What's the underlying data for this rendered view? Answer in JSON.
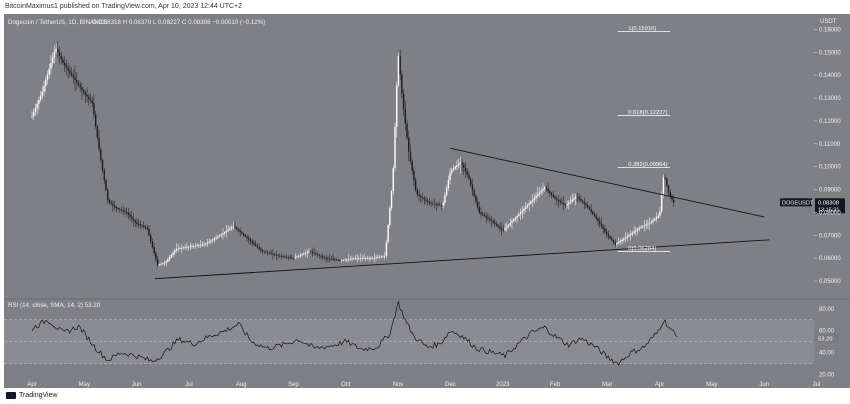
{
  "header": {
    "publisher_text": "BitcoinMaximus1 published on TradingView.com, Apr 10, 2023 12:44 UTC+2"
  },
  "footer": {
    "brand": "TradingView"
  },
  "colors": {
    "background": "#7f8085",
    "candle_up": "#ffffff",
    "candle_down": "#1a1a1a",
    "rsi_band": "#8b8c92",
    "price_tag": "#131722"
  },
  "chart_data": [
    {
      "type": "candlestick",
      "symbol_line": {
        "name": "Dogecoin / TetherUS, 1D, BINANCE",
        "ohlc": [
          "O 0.08318",
          "H 0.08379",
          "L 0.08227",
          "C 0.08308",
          "−0.00010 (−0.12%)"
        ]
      },
      "y_unit": "USDT",
      "ylim": [
        0.043,
        0.165
      ],
      "y_ticks": [
        0.05,
        0.06,
        0.07,
        0.08,
        0.09,
        0.1,
        0.11,
        0.12,
        0.13,
        0.14,
        0.15,
        0.16
      ],
      "y_tick_labels": [
        "0.05000",
        "0.06000",
        "0.07000",
        "0.08000",
        "0.09000",
        "0.10000",
        "0.11000",
        "0.12000",
        "0.13000",
        "0.14000",
        "0.15000",
        "0.16000"
      ],
      "x_months": [
        "Apr",
        "May",
        "Jun",
        "Jul",
        "Aug",
        "Sep",
        "Oct",
        "Nov",
        "Dec",
        "2023",
        "Feb",
        "Mar",
        "Apr",
        "May",
        "Jun",
        "Jul"
      ],
      "close_series": [
        {
          "t": 0.0,
          "v": 0.122
        },
        {
          "t": 0.2,
          "v": 0.133
        },
        {
          "t": 0.45,
          "v": 0.152
        },
        {
          "t": 0.6,
          "v": 0.145
        },
        {
          "t": 0.85,
          "v": 0.137
        },
        {
          "t": 1.0,
          "v": 0.132
        },
        {
          "t": 1.15,
          "v": 0.128
        },
        {
          "t": 1.3,
          "v": 0.105
        },
        {
          "t": 1.45,
          "v": 0.085
        },
        {
          "t": 1.6,
          "v": 0.082
        },
        {
          "t": 1.8,
          "v": 0.08
        },
        {
          "t": 2.0,
          "v": 0.075
        },
        {
          "t": 2.2,
          "v": 0.073
        },
        {
          "t": 2.4,
          "v": 0.057
        },
        {
          "t": 2.55,
          "v": 0.058
        },
        {
          "t": 2.75,
          "v": 0.064
        },
        {
          "t": 3.0,
          "v": 0.065
        },
        {
          "t": 3.3,
          "v": 0.066
        },
        {
          "t": 3.6,
          "v": 0.07
        },
        {
          "t": 3.85,
          "v": 0.074
        },
        {
          "t": 4.1,
          "v": 0.069
        },
        {
          "t": 4.4,
          "v": 0.063
        },
        {
          "t": 4.7,
          "v": 0.061
        },
        {
          "t": 5.0,
          "v": 0.06
        },
        {
          "t": 5.3,
          "v": 0.063
        },
        {
          "t": 5.6,
          "v": 0.06
        },
        {
          "t": 5.9,
          "v": 0.059
        },
        {
          "t": 6.2,
          "v": 0.06
        },
        {
          "t": 6.5,
          "v": 0.06
        },
        {
          "t": 6.75,
          "v": 0.061
        },
        {
          "t": 6.9,
          "v": 0.095
        },
        {
          "t": 7.0,
          "v": 0.15
        },
        {
          "t": 7.08,
          "v": 0.13
        },
        {
          "t": 7.2,
          "v": 0.107
        },
        {
          "t": 7.35,
          "v": 0.088
        },
        {
          "t": 7.6,
          "v": 0.084
        },
        {
          "t": 7.85,
          "v": 0.083
        },
        {
          "t": 8.0,
          "v": 0.098
        },
        {
          "t": 8.2,
          "v": 0.102
        },
        {
          "t": 8.35,
          "v": 0.095
        },
        {
          "t": 8.55,
          "v": 0.08
        },
        {
          "t": 8.8,
          "v": 0.076
        },
        {
          "t": 9.0,
          "v": 0.072
        },
        {
          "t": 9.3,
          "v": 0.079
        },
        {
          "t": 9.55,
          "v": 0.085
        },
        {
          "t": 9.8,
          "v": 0.091
        },
        {
          "t": 10.0,
          "v": 0.086
        },
        {
          "t": 10.2,
          "v": 0.083
        },
        {
          "t": 10.4,
          "v": 0.087
        },
        {
          "t": 10.6,
          "v": 0.083
        },
        {
          "t": 10.8,
          "v": 0.077
        },
        {
          "t": 11.0,
          "v": 0.07
        },
        {
          "t": 11.15,
          "v": 0.066
        },
        {
          "t": 11.35,
          "v": 0.069
        },
        {
          "t": 11.6,
          "v": 0.073
        },
        {
          "t": 11.85,
          "v": 0.076
        },
        {
          "t": 12.0,
          "v": 0.079
        },
        {
          "t": 12.08,
          "v": 0.097
        },
        {
          "t": 12.18,
          "v": 0.088
        },
        {
          "t": 12.3,
          "v": 0.083
        }
      ],
      "trendlines": [
        {
          "name": "ascending support",
          "from": {
            "t": 2.35,
            "v": 0.051
          },
          "to": {
            "t": 14.1,
            "v": 0.068
          }
        },
        {
          "name": "descending resistance",
          "from": {
            "t": 8.0,
            "v": 0.108
          },
          "to": {
            "t": 14.0,
            "v": 0.078
          }
        }
      ],
      "fib_levels": [
        {
          "label": "1(0.15916)",
          "value": 0.15916
        },
        {
          "label": "0.618(0.12237)",
          "value": 0.12237
        },
        {
          "label": "0.382(0.09964)",
          "value": 0.09964
        },
        {
          "label": "0(0.06284)",
          "value": 0.06284
        }
      ],
      "price_tag": {
        "symbol": "DOGEUSDT",
        "price": "0.08308",
        "countdown": "13:15:31",
        "value": 0.08308
      }
    },
    {
      "type": "line",
      "indicator_label": "RSI (14, close, SMA, 14, 2)",
      "indicator_value": "53.20",
      "indicator_extra": "0  0  0",
      "ylim": [
        15,
        88
      ],
      "y_ticks": [
        20,
        40,
        60,
        80
      ],
      "y_tick_labels": [
        "20.00",
        "40.00",
        "60.00",
        "80.00"
      ],
      "band": [
        30,
        70
      ],
      "midline": 50,
      "series": [
        {
          "t": 0.0,
          "v": 62
        },
        {
          "t": 0.3,
          "v": 70
        },
        {
          "t": 0.6,
          "v": 58
        },
        {
          "t": 0.9,
          "v": 64
        },
        {
          "t": 1.2,
          "v": 45
        },
        {
          "t": 1.45,
          "v": 33
        },
        {
          "t": 1.7,
          "v": 40
        },
        {
          "t": 2.0,
          "v": 37
        },
        {
          "t": 2.3,
          "v": 32
        },
        {
          "t": 2.5,
          "v": 38
        },
        {
          "t": 2.8,
          "v": 52
        },
        {
          "t": 3.1,
          "v": 48
        },
        {
          "t": 3.4,
          "v": 55
        },
        {
          "t": 3.7,
          "v": 60
        },
        {
          "t": 3.95,
          "v": 66
        },
        {
          "t": 4.2,
          "v": 50
        },
        {
          "t": 4.5,
          "v": 44
        },
        {
          "t": 4.8,
          "v": 47
        },
        {
          "t": 5.1,
          "v": 52
        },
        {
          "t": 5.4,
          "v": 44
        },
        {
          "t": 5.7,
          "v": 46
        },
        {
          "t": 6.0,
          "v": 50
        },
        {
          "t": 6.3,
          "v": 43
        },
        {
          "t": 6.6,
          "v": 45
        },
        {
          "t": 6.85,
          "v": 58
        },
        {
          "t": 7.0,
          "v": 86
        },
        {
          "t": 7.15,
          "v": 68
        },
        {
          "t": 7.3,
          "v": 55
        },
        {
          "t": 7.55,
          "v": 45
        },
        {
          "t": 7.8,
          "v": 48
        },
        {
          "t": 8.0,
          "v": 60
        },
        {
          "t": 8.2,
          "v": 56
        },
        {
          "t": 8.5,
          "v": 44
        },
        {
          "t": 8.8,
          "v": 40
        },
        {
          "t": 9.05,
          "v": 37
        },
        {
          "t": 9.3,
          "v": 48
        },
        {
          "t": 9.55,
          "v": 58
        },
        {
          "t": 9.8,
          "v": 63
        },
        {
          "t": 10.0,
          "v": 55
        },
        {
          "t": 10.25,
          "v": 47
        },
        {
          "t": 10.5,
          "v": 53
        },
        {
          "t": 10.75,
          "v": 46
        },
        {
          "t": 11.0,
          "v": 36
        },
        {
          "t": 11.2,
          "v": 30
        },
        {
          "t": 11.45,
          "v": 40
        },
        {
          "t": 11.7,
          "v": 45
        },
        {
          "t": 11.95,
          "v": 58
        },
        {
          "t": 12.08,
          "v": 70
        },
        {
          "t": 12.2,
          "v": 62
        },
        {
          "t": 12.35,
          "v": 53
        }
      ],
      "value_tag": "53.20"
    }
  ]
}
